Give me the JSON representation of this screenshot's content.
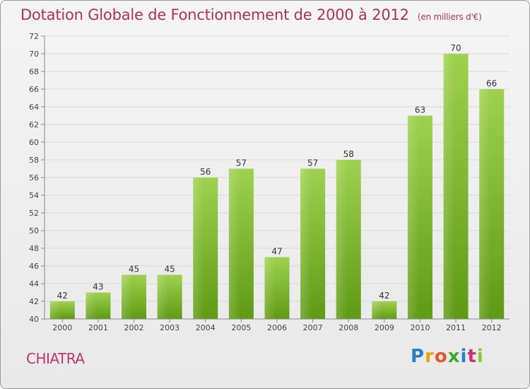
{
  "title": "Dotation Globale de Fonctionnement de 2000 à 2012",
  "subtitle": "(en milliers d'€)",
  "commune": "CHIATRA",
  "logo": [
    "P",
    "r",
    "o",
    "x",
    "i",
    "t",
    "i"
  ],
  "logo_colors": [
    "#2a7fc9",
    "#e8a317",
    "#e8542a",
    "#3aaa35",
    "#2a7fc9",
    "#c9307a",
    "#8ec63f"
  ],
  "colors": {
    "bar_top": "#9ed14f",
    "bar_bottom": "#5f9a14",
    "grid": "#d8d8d8",
    "axis": "#888888",
    "title": "#b0305a"
  },
  "chart_data": {
    "type": "bar",
    "title": "Dotation Globale de Fonctionnement de 2000 à 2012",
    "subtitle": "(en milliers d'€)",
    "xlabel": "",
    "ylabel": "",
    "categories": [
      "2000",
      "2001",
      "2002",
      "2003",
      "2004",
      "2005",
      "2006",
      "2007",
      "2008",
      "2009",
      "2010",
      "2011",
      "2012"
    ],
    "values": [
      42,
      43,
      45,
      45,
      56,
      57,
      47,
      57,
      58,
      42,
      63,
      70,
      66
    ],
    "ylim": [
      40,
      72
    ],
    "yticks": [
      40,
      42,
      44,
      46,
      48,
      50,
      52,
      54,
      56,
      58,
      60,
      62,
      64,
      66,
      68,
      70,
      72
    ],
    "grid": true,
    "legend": "none"
  }
}
